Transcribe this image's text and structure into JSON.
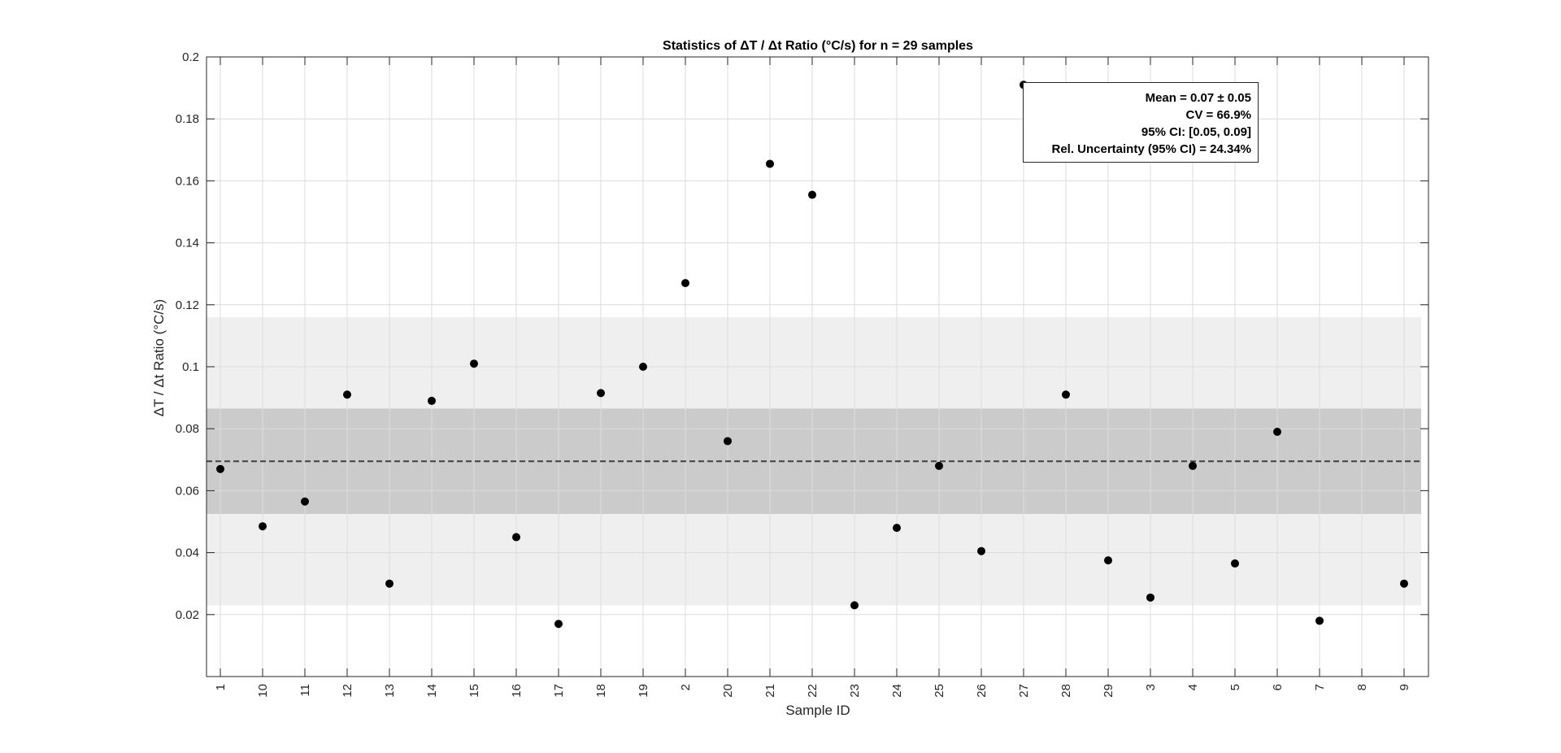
{
  "chart_data": {
    "type": "scatter",
    "title": "Statistics of ΔT / Δt Ratio (°C/s) for n = 29 samples",
    "xlabel": "Sample ID",
    "ylabel": "ΔT / Δt Ratio (°C/s)",
    "categories": [
      "1",
      "10",
      "11",
      "12",
      "13",
      "14",
      "15",
      "16",
      "17",
      "18",
      "19",
      "2",
      "20",
      "21",
      "22",
      "23",
      "24",
      "25",
      "26",
      "27",
      "28",
      "29",
      "3",
      "4",
      "5",
      "6",
      "7",
      "8",
      "9"
    ],
    "values": [
      0.067,
      0.0485,
      0.0565,
      0.091,
      0.03,
      0.089,
      0.101,
      0.045,
      0.017,
      0.0915,
      0.1,
      0.127,
      0.076,
      0.1655,
      0.1555,
      0.023,
      0.048,
      0.068,
      0.0405,
      0.191,
      0.091,
      0.0375,
      0.0255,
      0.068,
      0.0365,
      0.079,
      0.018,
      null,
      0.03
    ],
    "ylim": [
      0,
      0.2
    ],
    "yticks": [
      "0.02",
      "0.04",
      "0.06",
      "0.08",
      "0.1",
      "0.12",
      "0.14",
      "0.16",
      "0.18",
      "0.2"
    ],
    "ytick_values": [
      0.02,
      0.04,
      0.06,
      0.08,
      0.1,
      0.12,
      0.14,
      0.16,
      0.18,
      0.2
    ],
    "mean": 0.0695,
    "ci_band": [
      0.0525,
      0.0865
    ],
    "outer_band": [
      0.023,
      0.116
    ],
    "grid": true,
    "colors": {
      "points": "#000000",
      "outer_band": "#efefef",
      "inner_band": "#cbcbcb",
      "mean_line": "#404040",
      "grid": "#dcdcdc"
    }
  },
  "stats_box": {
    "mean": "Mean = 0.07 ± 0.05",
    "cv": "CV = 66.9%",
    "ci": "95% CI: [0.05, 0.09]",
    "rel_unc": "Rel. Uncertainty (95% CI) = 24.34%"
  }
}
